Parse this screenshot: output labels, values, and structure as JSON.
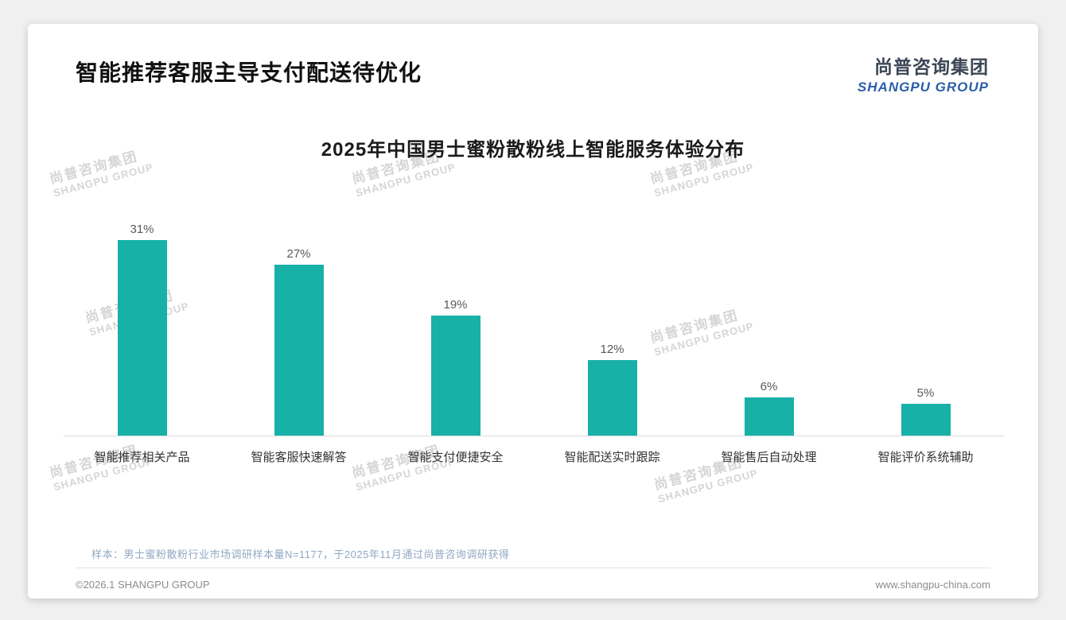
{
  "page": {
    "title": "智能推荐客服主导支付配送待优化",
    "logo": {
      "cn": "尚普咨询集团",
      "en": "SHANGPU GROUP"
    },
    "watermark": {
      "cn": "尚普咨询集团",
      "en": "SHANGPU GROUP"
    },
    "footnote": "样本：男士蜜粉散粉行业市场调研样本量N=1177，于2025年11月通过尚普咨询调研获得",
    "footer_left": "©2026.1 SHANGPU GROUP",
    "footer_right": "www.shangpu-china.com"
  },
  "chart_data": {
    "type": "bar",
    "title": "2025年中国男士蜜粉散粉线上智能服务体验分布",
    "categories": [
      "智能推荐相关产品",
      "智能客服快速解答",
      "智能支付便捷安全",
      "智能配送实时跟踪",
      "智能售后自动处理",
      "智能评价系统辅助"
    ],
    "values": [
      31,
      27,
      19,
      12,
      6,
      5
    ],
    "unit": "%",
    "bar_color": "#17b1a7",
    "ylim": [
      0,
      34
    ],
    "grid": false,
    "legend": false,
    "xlabel": "",
    "ylabel": ""
  }
}
